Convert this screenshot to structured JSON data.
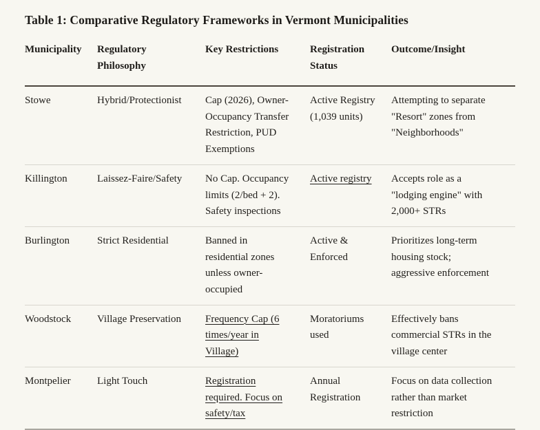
{
  "page": {
    "title": "Table 1: Comparative Regulatory Frameworks in Vermont Municipalities"
  },
  "table": {
    "headers": {
      "municipality": "Municipality",
      "philosophy": "Regulatory Philosophy",
      "restrictions": "Key Restrictions",
      "registration": "Registration Status",
      "outcome": "Outcome/Insight"
    },
    "rows": [
      {
        "municipality": "Stowe",
        "philosophy": "Hybrid/Protectionist",
        "restrictions": "Cap (2026), Owner-Occupancy Transfer Restriction, PUD Exemptions",
        "registration": "Active Registry (1,039 units)",
        "outcome": "Attempting to separate \"Resort\" zones from \"Neighborhoods\""
      },
      {
        "municipality": "Killington",
        "philosophy": "Laissez-Faire/Safety",
        "restrictions": "No Cap. Occupancy limits (2/bed + 2). Safety inspections",
        "registration": "Active registry",
        "outcome": "Accepts role as a \"lodging engine\" with 2,000+ STRs"
      },
      {
        "municipality": "Burlington",
        "philosophy": "Strict Residential",
        "restrictions": "Banned in residential zones unless owner-occupied",
        "registration": "Active & Enforced",
        "outcome": "Prioritizes long-term housing stock; aggressive enforcement"
      },
      {
        "municipality": "Woodstock",
        "philosophy": "Village Preservation",
        "restrictions": "Frequency Cap (6 times/year in Village)",
        "registration": "Moratoriums used",
        "outcome": "Effectively bans commercial STRs in the village center"
      },
      {
        "municipality": "Montpelier",
        "philosophy": "Light Touch",
        "restrictions": "Registration required. Focus on safety/tax",
        "registration": "Annual Registration",
        "outcome": "Focus on data collection rather than market restriction"
      }
    ]
  },
  "colors": {
    "background": "#f8f7f1",
    "text": "#201e1b",
    "header_rule": "#4a443d",
    "row_rule": "#d8d6ce",
    "bottom_rule": "#a9a7a0"
  }
}
